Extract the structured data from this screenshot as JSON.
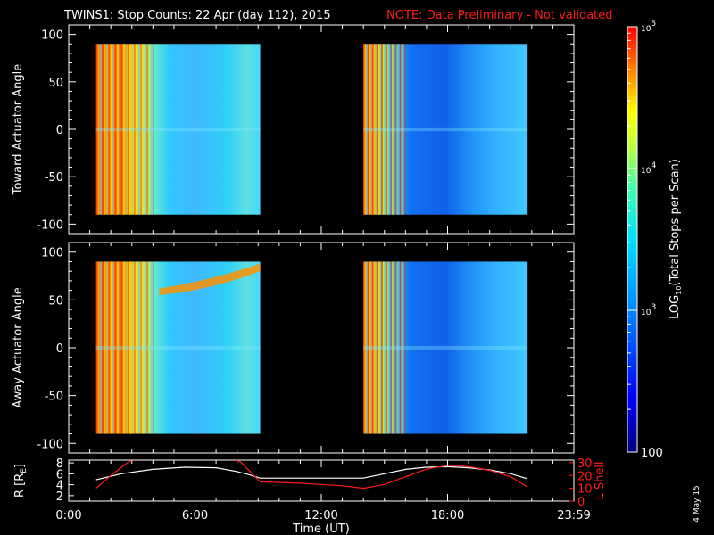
{
  "title": "TWINS1: Stop Counts: 22 Apr (day 112), 2015",
  "note": "NOTE: Data Preliminary - Not validated",
  "footer_date": "4 May 15",
  "colors": {
    "frame": "#ffffff",
    "note": "#ff1a1a",
    "r_line": "#ffffff",
    "l_line": "#ff1a1a"
  },
  "chart_data": [
    {
      "type": "heatmap",
      "panel": "toward",
      "ylabel": "Toward Actuator Angle",
      "ylim": [
        -110,
        110
      ],
      "yticks": [
        "100",
        "50",
        "0",
        "-50",
        "-100"
      ],
      "ytick_values": [
        100,
        50,
        0,
        -50,
        -100
      ],
      "xlim_hours": [
        0,
        24
      ],
      "data_blocks_hours": [
        [
          1.3,
          9.1
        ],
        [
          14.0,
          21.8
        ]
      ],
      "data_angle_range": [
        -90,
        90
      ]
    },
    {
      "type": "heatmap",
      "panel": "away",
      "ylabel": "Away Actuator Angle",
      "ylim": [
        -110,
        110
      ],
      "yticks": [
        "100",
        "50",
        "0",
        "-50",
        "-100"
      ],
      "ytick_values": [
        100,
        50,
        0,
        -50,
        -100
      ],
      "xlim_hours": [
        0,
        24
      ],
      "data_blocks_hours": [
        [
          1.3,
          9.1
        ],
        [
          14.0,
          21.8
        ]
      ],
      "data_angle_range": [
        -90,
        90
      ]
    },
    {
      "type": "line",
      "panel": "orbit",
      "ylabel_left": "R [R",
      "ylabel_left_sub": "E",
      "ylabel_left_end": "]",
      "ylabel_right": "L Shell",
      "ylim_left": [
        1,
        8.5
      ],
      "yticks_left": [
        "2",
        "4",
        "6",
        "8"
      ],
      "yticks_left_values": [
        2,
        4,
        6,
        8
      ],
      "ylim_right": [
        0,
        32
      ],
      "yticks_right": [
        "0",
        "10",
        "20",
        "30"
      ],
      "yticks_right_values": [
        0,
        10,
        20,
        30
      ],
      "xlabel": "Time (UT)",
      "xticks": [
        "0:00",
        "6:00",
        "12:00",
        "18:00",
        "23:59"
      ],
      "xtick_values": [
        0,
        6,
        12,
        18,
        24
      ],
      "series": [
        {
          "axis": "left",
          "x": [
            1.3,
            2.5,
            4.0,
            5.5,
            7.0,
            8.0,
            8.5,
            9.1,
            11,
            13,
            14.0,
            15,
            16,
            17,
            18,
            19,
            20,
            21,
            21.8
          ],
          "y": [
            4.9,
            6.0,
            6.8,
            7.2,
            7.1,
            6.4,
            5.9,
            5.2,
            5.2,
            5.2,
            5.2,
            6.0,
            6.8,
            7.2,
            7.3,
            7.1,
            6.7,
            6.0,
            5.1
          ]
        },
        {
          "axis": "right",
          "x": [
            1.3,
            2.0,
            2.8,
            3.2,
            7.8,
            8.2,
            9.1,
            11,
            13,
            14.0,
            15,
            16,
            17,
            18,
            19,
            20,
            21,
            21.8
          ],
          "y": [
            10,
            20,
            30,
            34,
            34,
            30,
            15,
            14,
            12,
            10,
            13,
            19,
            25,
            28,
            27,
            24,
            19,
            11
          ]
        }
      ]
    },
    {
      "type": "colorbar",
      "label": "LOG",
      "label_sub": "10",
      "label_end": "(Total Stops per Scan)",
      "tick_bases": [
        "10",
        "10",
        "10",
        "100"
      ],
      "tick_exps": [
        "5",
        "4",
        "3",
        ""
      ],
      "range": [
        100,
        100000
      ]
    }
  ]
}
